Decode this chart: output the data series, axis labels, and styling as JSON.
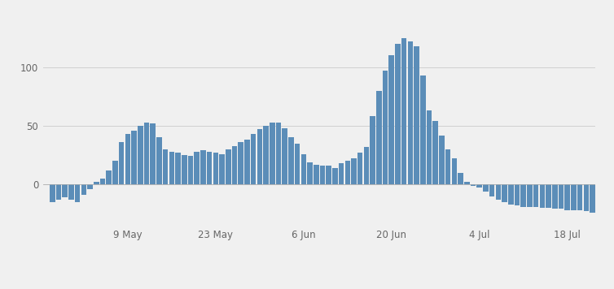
{
  "values": [
    -15,
    -13,
    -11,
    -13,
    -15,
    -9,
    -4,
    2,
    5,
    12,
    20,
    36,
    43,
    46,
    50,
    53,
    52,
    40,
    30,
    28,
    27,
    25,
    24,
    28,
    29,
    28,
    27,
    26,
    30,
    33,
    36,
    38,
    43,
    47,
    50,
    53,
    53,
    48,
    40,
    35,
    26,
    19,
    17,
    16,
    16,
    14,
    18,
    20,
    22,
    27,
    32,
    58,
    80,
    97,
    110,
    120,
    125,
    122,
    118,
    93,
    63,
    54,
    42,
    30,
    22,
    10,
    2,
    -1,
    -3,
    -6,
    -10,
    -13,
    -15,
    -17,
    -18,
    -19,
    -19,
    -19,
    -20,
    -20,
    -21,
    -21,
    -22,
    -22,
    -22,
    -23,
    -24
  ],
  "tick_labels": [
    "9 May",
    "23 May",
    "6 Jun",
    "20 Jun",
    "4 Jul",
    "18 Jul"
  ],
  "tick_positions": [
    12,
    26,
    40,
    54,
    68,
    82
  ],
  "bar_color": "#5b8db8",
  "background_color": "#f0f0f0",
  "grid_color": "#d0d0d0",
  "ylim": [
    -35,
    145
  ],
  "yticks": [
    0,
    50,
    100
  ],
  "legend_color": "#5b8db8",
  "figsize": [
    7.54,
    3.56
  ],
  "dpi": 100
}
